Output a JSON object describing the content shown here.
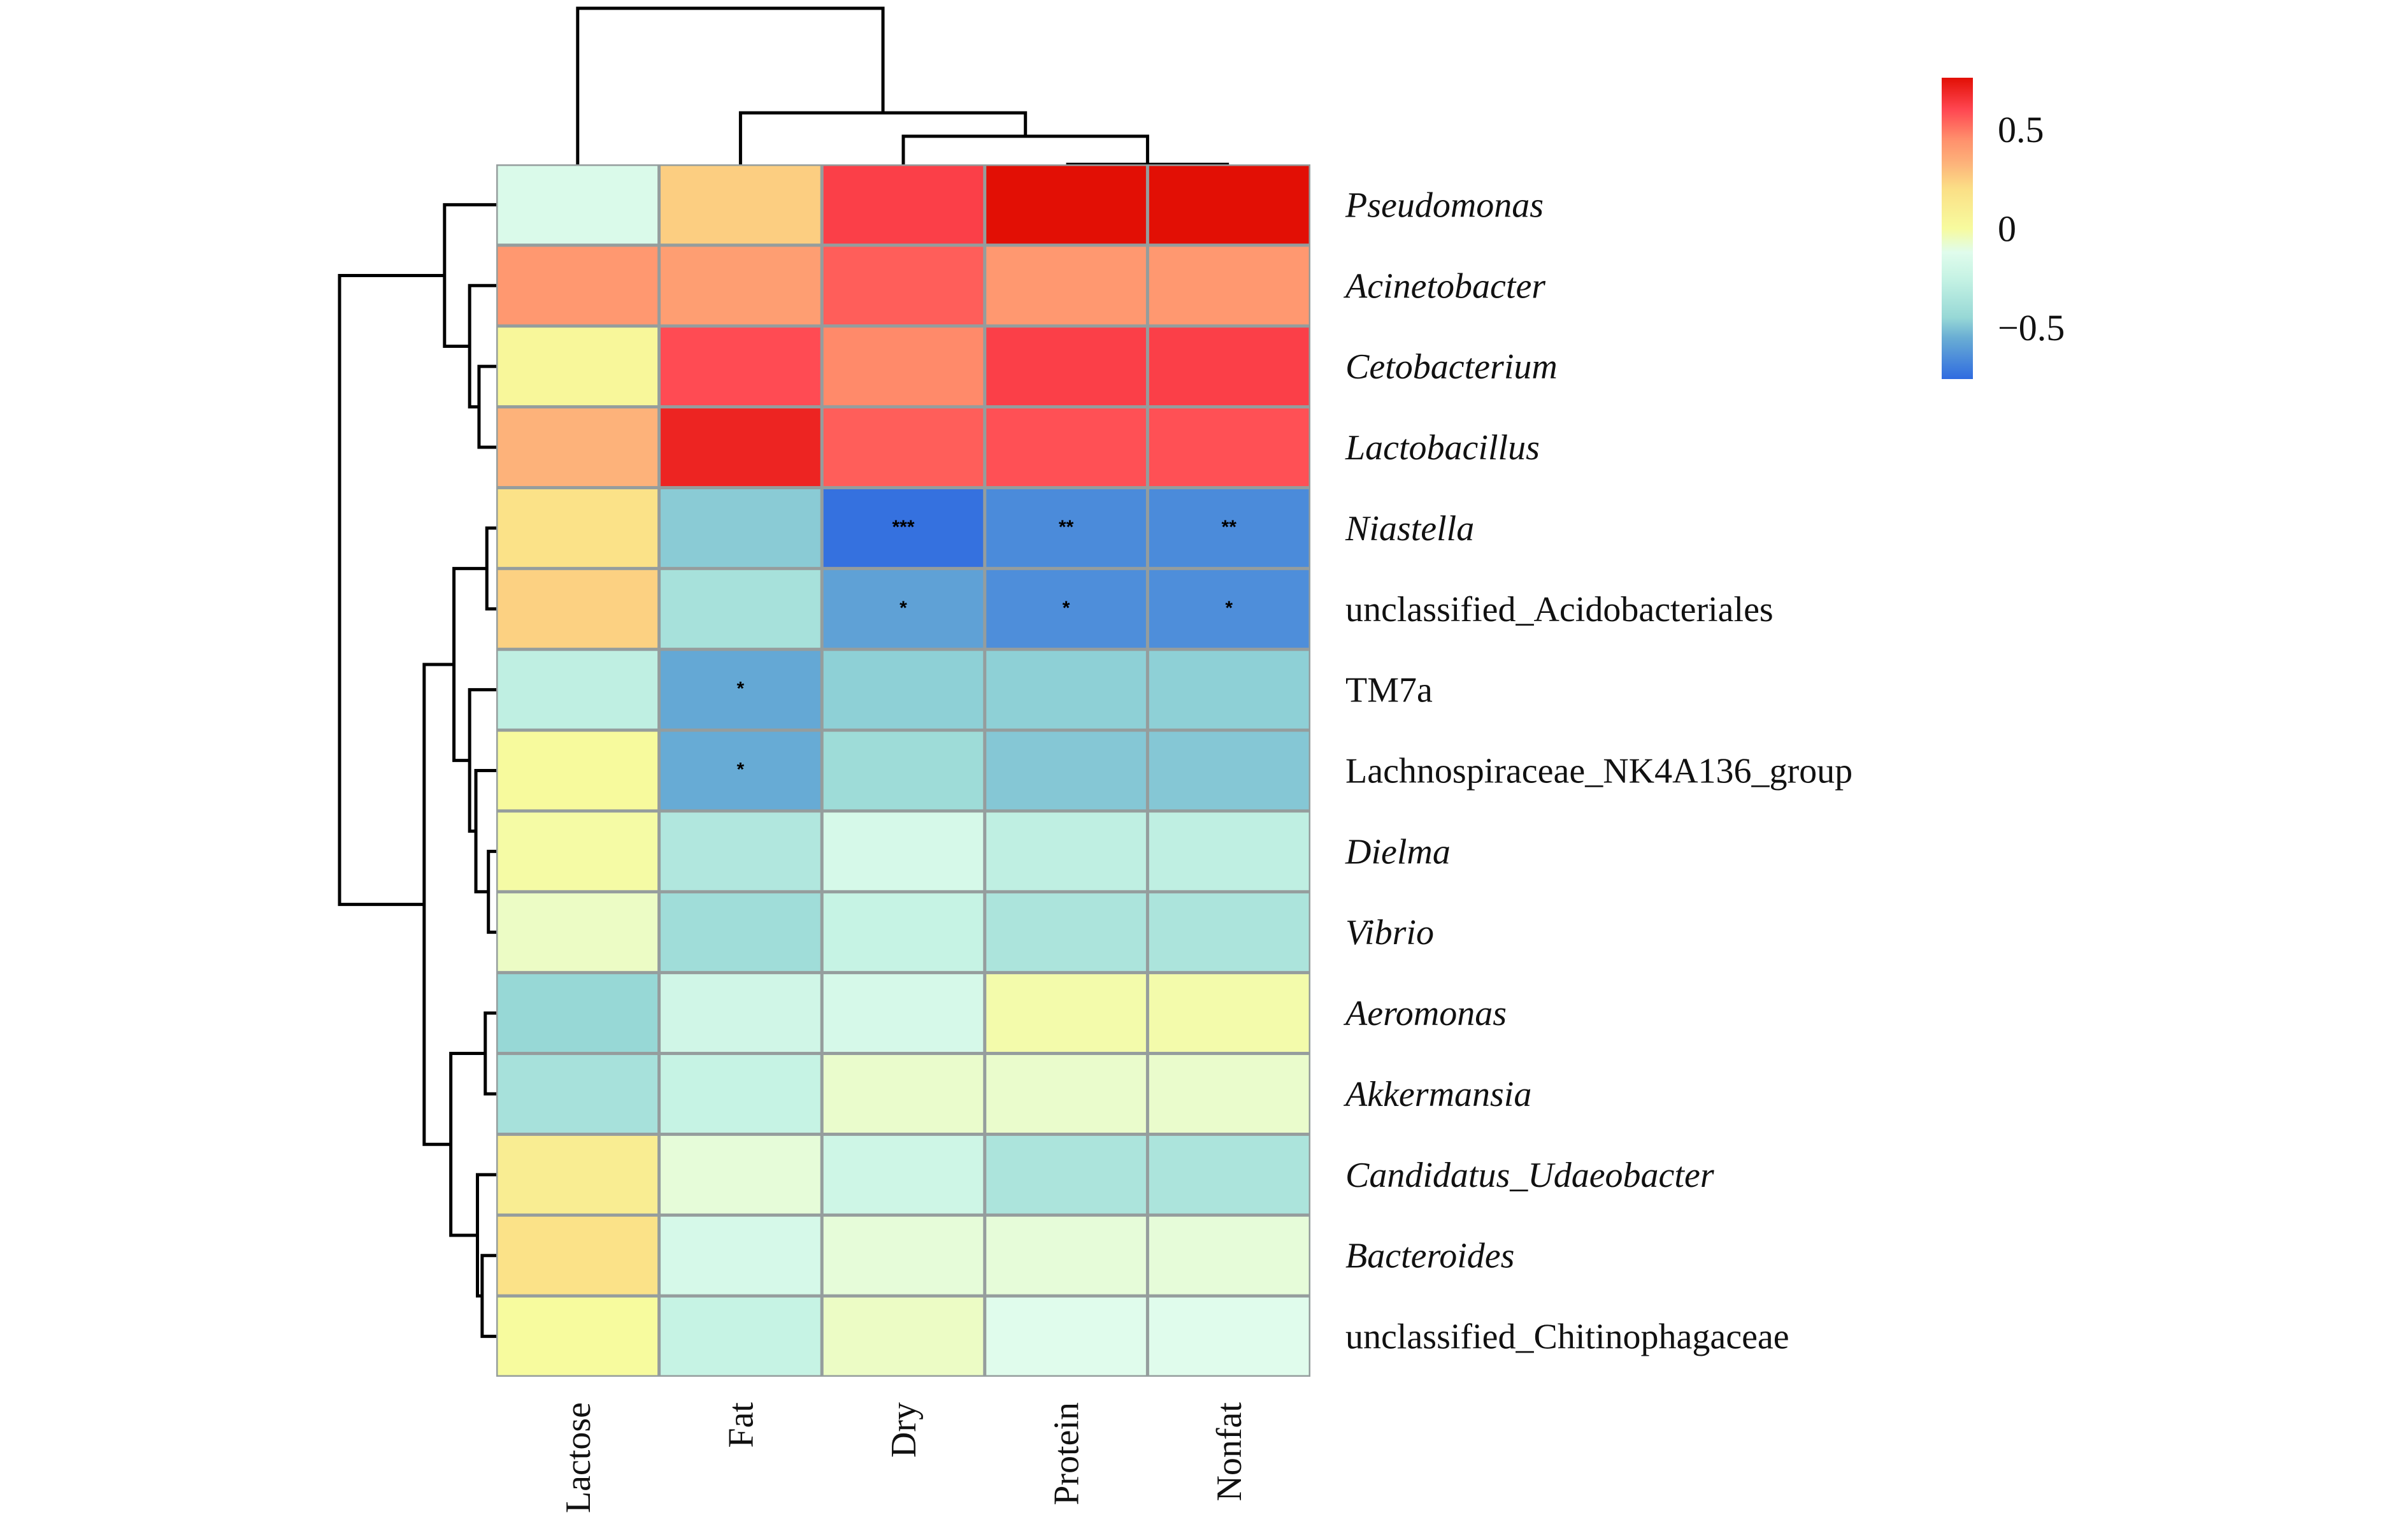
{
  "chart_data": {
    "type": "heatmap",
    "title": "",
    "columns": [
      "Lactose",
      "Fat",
      "Dry",
      "Protein",
      "Nonfat"
    ],
    "rows": [
      {
        "label": "Pseudomonas",
        "italic": true,
        "values": [
          -0.15,
          0.25,
          0.62,
          0.76,
          0.76
        ],
        "sig": [
          "",
          "",
          "",
          "",
          ""
        ]
      },
      {
        "label": "Acinetobacter",
        "italic": true,
        "values": [
          0.42,
          0.4,
          0.55,
          0.42,
          0.42
        ],
        "sig": [
          "",
          "",
          "",
          "",
          ""
        ]
      },
      {
        "label": "Cetobacterium",
        "italic": true,
        "values": [
          0.03,
          0.59,
          0.46,
          0.62,
          0.62
        ],
        "sig": [
          "",
          "",
          "",
          "",
          ""
        ]
      },
      {
        "label": "Lactobacillus",
        "italic": true,
        "values": [
          0.33,
          0.7,
          0.55,
          0.58,
          0.58
        ],
        "sig": [
          "",
          "",
          "",
          "",
          ""
        ]
      },
      {
        "label": "Niastella",
        "italic": true,
        "values": [
          0.18,
          -0.48,
          -0.74,
          -0.66,
          -0.66
        ],
        "sig": [
          "",
          "",
          "***",
          "**",
          "**"
        ]
      },
      {
        "label": "unclassified_Acidobacteriales",
        "italic": false,
        "values": [
          0.24,
          -0.38,
          -0.59,
          -0.65,
          -0.65
        ],
        "sig": [
          "",
          "",
          "*",
          "*",
          "*"
        ]
      },
      {
        "label": "TM7a",
        "italic": false,
        "values": [
          -0.28,
          -0.57,
          -0.47,
          -0.47,
          -0.47
        ],
        "sig": [
          "",
          "*",
          "",
          "",
          ""
        ]
      },
      {
        "label": "Lachnospiraceae_NK4A136_group",
        "italic": false,
        "values": [
          0.01,
          -0.56,
          -0.42,
          -0.49,
          -0.49
        ],
        "sig": [
          "",
          "*",
          "",
          "",
          ""
        ]
      },
      {
        "label": "Dielma",
        "italic": true,
        "values": [
          -0.01,
          -0.34,
          -0.17,
          -0.28,
          -0.28
        ],
        "sig": [
          "",
          "",
          "",
          "",
          ""
        ]
      },
      {
        "label": "Vibrio",
        "italic": true,
        "values": [
          -0.06,
          -0.41,
          -0.25,
          -0.36,
          -0.36
        ],
        "sig": [
          "",
          "",
          "",
          "",
          ""
        ]
      },
      {
        "label": "Aeromonas",
        "italic": true,
        "values": [
          -0.45,
          -0.2,
          -0.17,
          -0.02,
          -0.02
        ],
        "sig": [
          "",
          "",
          "",
          "",
          ""
        ]
      },
      {
        "label": "Akkermansia",
        "italic": true,
        "values": [
          -0.38,
          -0.25,
          -0.07,
          -0.07,
          -0.07
        ],
        "sig": [
          "",
          "",
          "",
          "",
          ""
        ]
      },
      {
        "label": "Candidatus_Udaeobacter",
        "italic": true,
        "values": [
          0.1,
          -0.09,
          -0.21,
          -0.36,
          -0.36
        ],
        "sig": [
          "",
          "",
          "",
          "",
          ""
        ]
      },
      {
        "label": "Bacteroides",
        "italic": true,
        "values": [
          0.18,
          -0.17,
          -0.09,
          -0.09,
          -0.09
        ],
        "sig": [
          "",
          "",
          "",
          "",
          ""
        ]
      },
      {
        "label": "unclassified_Chitinophagaceae",
        "italic": false,
        "values": [
          0.0,
          -0.25,
          -0.06,
          -0.12,
          -0.12
        ],
        "sig": [
          "",
          "",
          "",
          "",
          ""
        ]
      }
    ],
    "value_range": [
      -0.76,
      0.76
    ],
    "colorbar": {
      "ticks": [
        0.5,
        0,
        -0.5
      ],
      "tick_labels": [
        "0.5",
        "0",
        "−0.5"
      ],
      "stops": [
        {
          "v": -0.76,
          "color": "#2f6be0"
        },
        {
          "v": -0.55,
          "color": "#6aaed4"
        },
        {
          "v": -0.45,
          "color": "#97d8d6"
        },
        {
          "v": -0.25,
          "color": "#c6f3e4"
        },
        {
          "v": -0.12,
          "color": "#e0fcec"
        },
        {
          "v": 0.0,
          "color": "#f7fb9e"
        },
        {
          "v": 0.2,
          "color": "#fbdf86"
        },
        {
          "v": 0.33,
          "color": "#fdb27a"
        },
        {
          "v": 0.45,
          "color": "#ff8f6c"
        },
        {
          "v": 0.6,
          "color": "#ff4651"
        },
        {
          "v": 0.76,
          "color": "#e20f05"
        }
      ],
      "position": "right"
    },
    "grid_line_color": "#959d9d",
    "column_dendrogram": {
      "leaves_order": [
        "Lactose",
        "Fat",
        "Dry",
        "Protein",
        "Nonfat"
      ],
      "merges": [
        {
          "a": "Protein",
          "b": "Nonfat",
          "height": 0.0
        },
        {
          "a": "Dry",
          "b": "Protein+Nonfat",
          "height": 0.18
        },
        {
          "a": "Fat",
          "b": "Dry+Protein+Nonfat",
          "height": 0.33
        },
        {
          "a": "Lactose",
          "b": "Fat+Dry+Protein+Nonfat",
          "height": 1.0
        }
      ]
    },
    "row_dendrogram": {
      "tree": [
        [
          0,
          [
            1,
            [
              2,
              3
            ]
          ]
        ],
        [
          [
            [
              4,
              5
            ],
            [
              6,
              [
                7,
                [
                  8,
                  9
                ]
              ]
            ]
          ],
          [
            [
              10,
              11
            ],
            [
              12,
              [
                13,
                14
              ]
            ]
          ]
        ]
      ],
      "heights": {
        "root": 1.0,
        "A": 0.33,
        "A1": 0.17,
        "A2": 0.11,
        "B": 0.46,
        "B1": 0.27,
        "B1a": 0.06,
        "B1b": 0.17,
        "B1c": 0.13,
        "B1d": 0.05,
        "B2": 0.29,
        "B2a": 0.07,
        "B2b": 0.12,
        "B2c": 0.09
      }
    }
  }
}
